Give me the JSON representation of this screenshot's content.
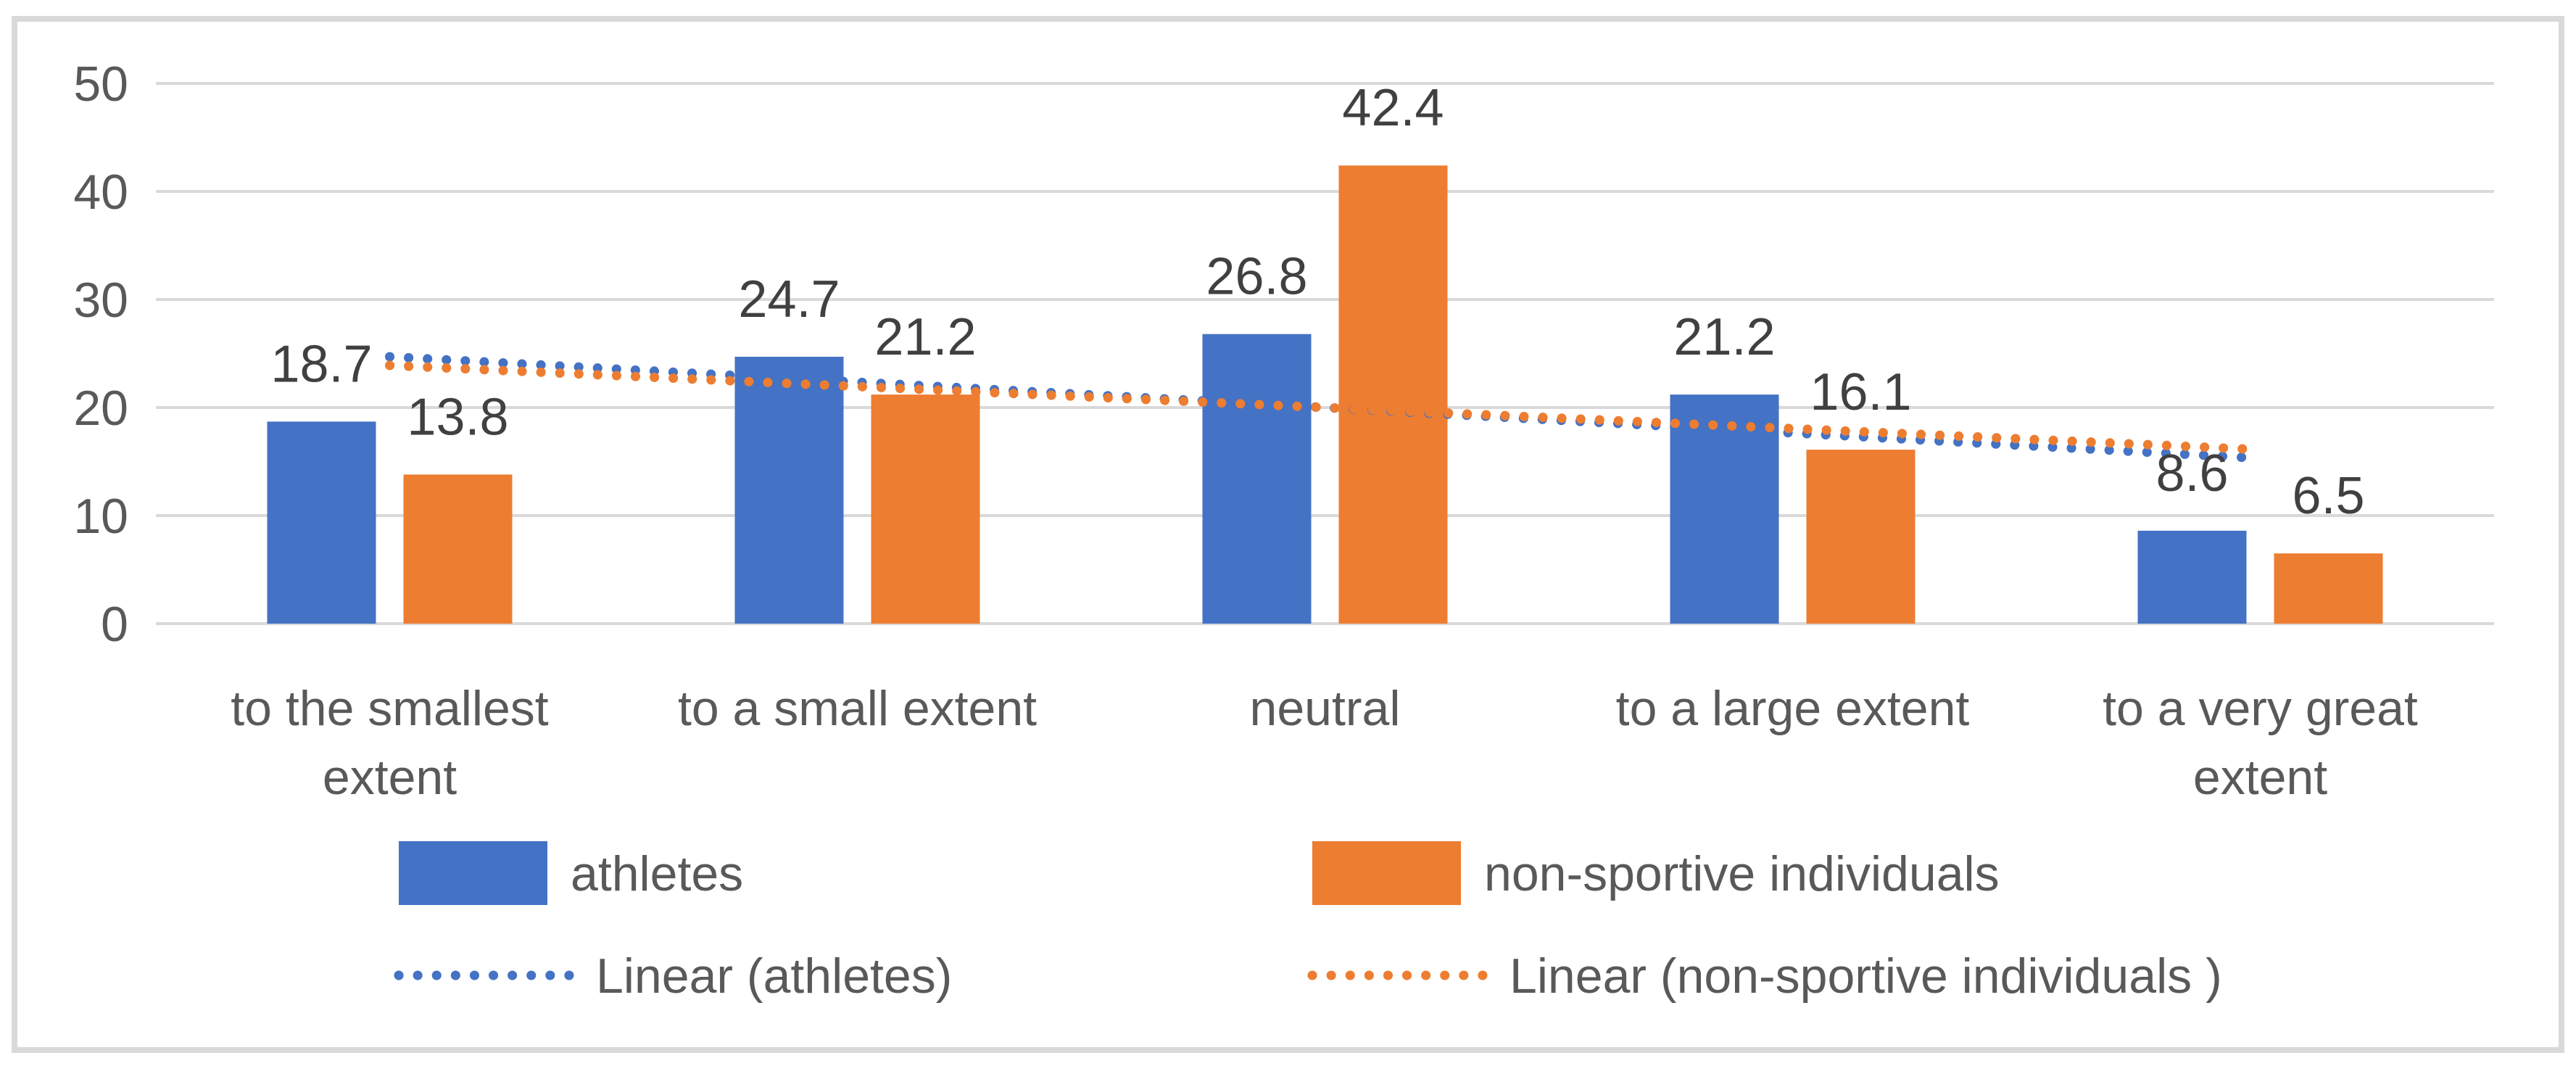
{
  "chart_data": {
    "type": "bar",
    "title": "",
    "categories": [
      "to the smallest\nextent",
      "to a small extent",
      "neutral",
      "to a large extent",
      "to a very great\nextent"
    ],
    "series": [
      {
        "name": "athletes",
        "color": "#4472C4",
        "values": [
          18.7,
          24.7,
          26.8,
          21.2,
          8.6
        ],
        "labels": [
          "18.7",
          "24.7",
          "26.8",
          "21.2",
          "8.6"
        ]
      },
      {
        "name": "non-sportive individuals",
        "color": "#ED7D31",
        "values": [
          13.8,
          21.2,
          42.4,
          16.1,
          6.5
        ],
        "labels": [
          "13.8",
          "21.2",
          "42.4",
          "16.1",
          "6.5"
        ]
      }
    ],
    "trendlines": [
      {
        "name": "Linear (athletes)",
        "color": "#4472C4",
        "style": "dotted",
        "start_value": 24.7,
        "end_value": 15.3
      },
      {
        "name": "Linear (non-sportive individuals )",
        "color": "#ED7D31",
        "style": "dotted",
        "start_value": 23.9,
        "end_value": 16.1
      }
    ],
    "y_axis": {
      "min": 0,
      "max": 50,
      "step": 10,
      "tick_labels": [
        "0",
        "10",
        "20",
        "30",
        "40",
        "50"
      ]
    },
    "xlabel": "",
    "ylabel": "",
    "grid": true,
    "legend_position": "bottom",
    "colors": {
      "gridline": "#D9D9D9",
      "frame_border": "#D9D9D9",
      "axis_text": "#595959",
      "category_text": "#595959",
      "data_label_text": "#404040",
      "legend_text": "#595959",
      "background": "#FFFFFF"
    }
  },
  "legend": {
    "items": [
      {
        "label": "athletes",
        "marker": "swatch",
        "color": "#4472C4"
      },
      {
        "label": "non-sportive individuals",
        "marker": "swatch",
        "color": "#ED7D31"
      },
      {
        "label": "Linear (athletes)",
        "marker": "dotted",
        "color": "#4472C4"
      },
      {
        "label": "Linear (non-sportive individuals )",
        "marker": "dotted",
        "color": "#ED7D31"
      }
    ]
  }
}
